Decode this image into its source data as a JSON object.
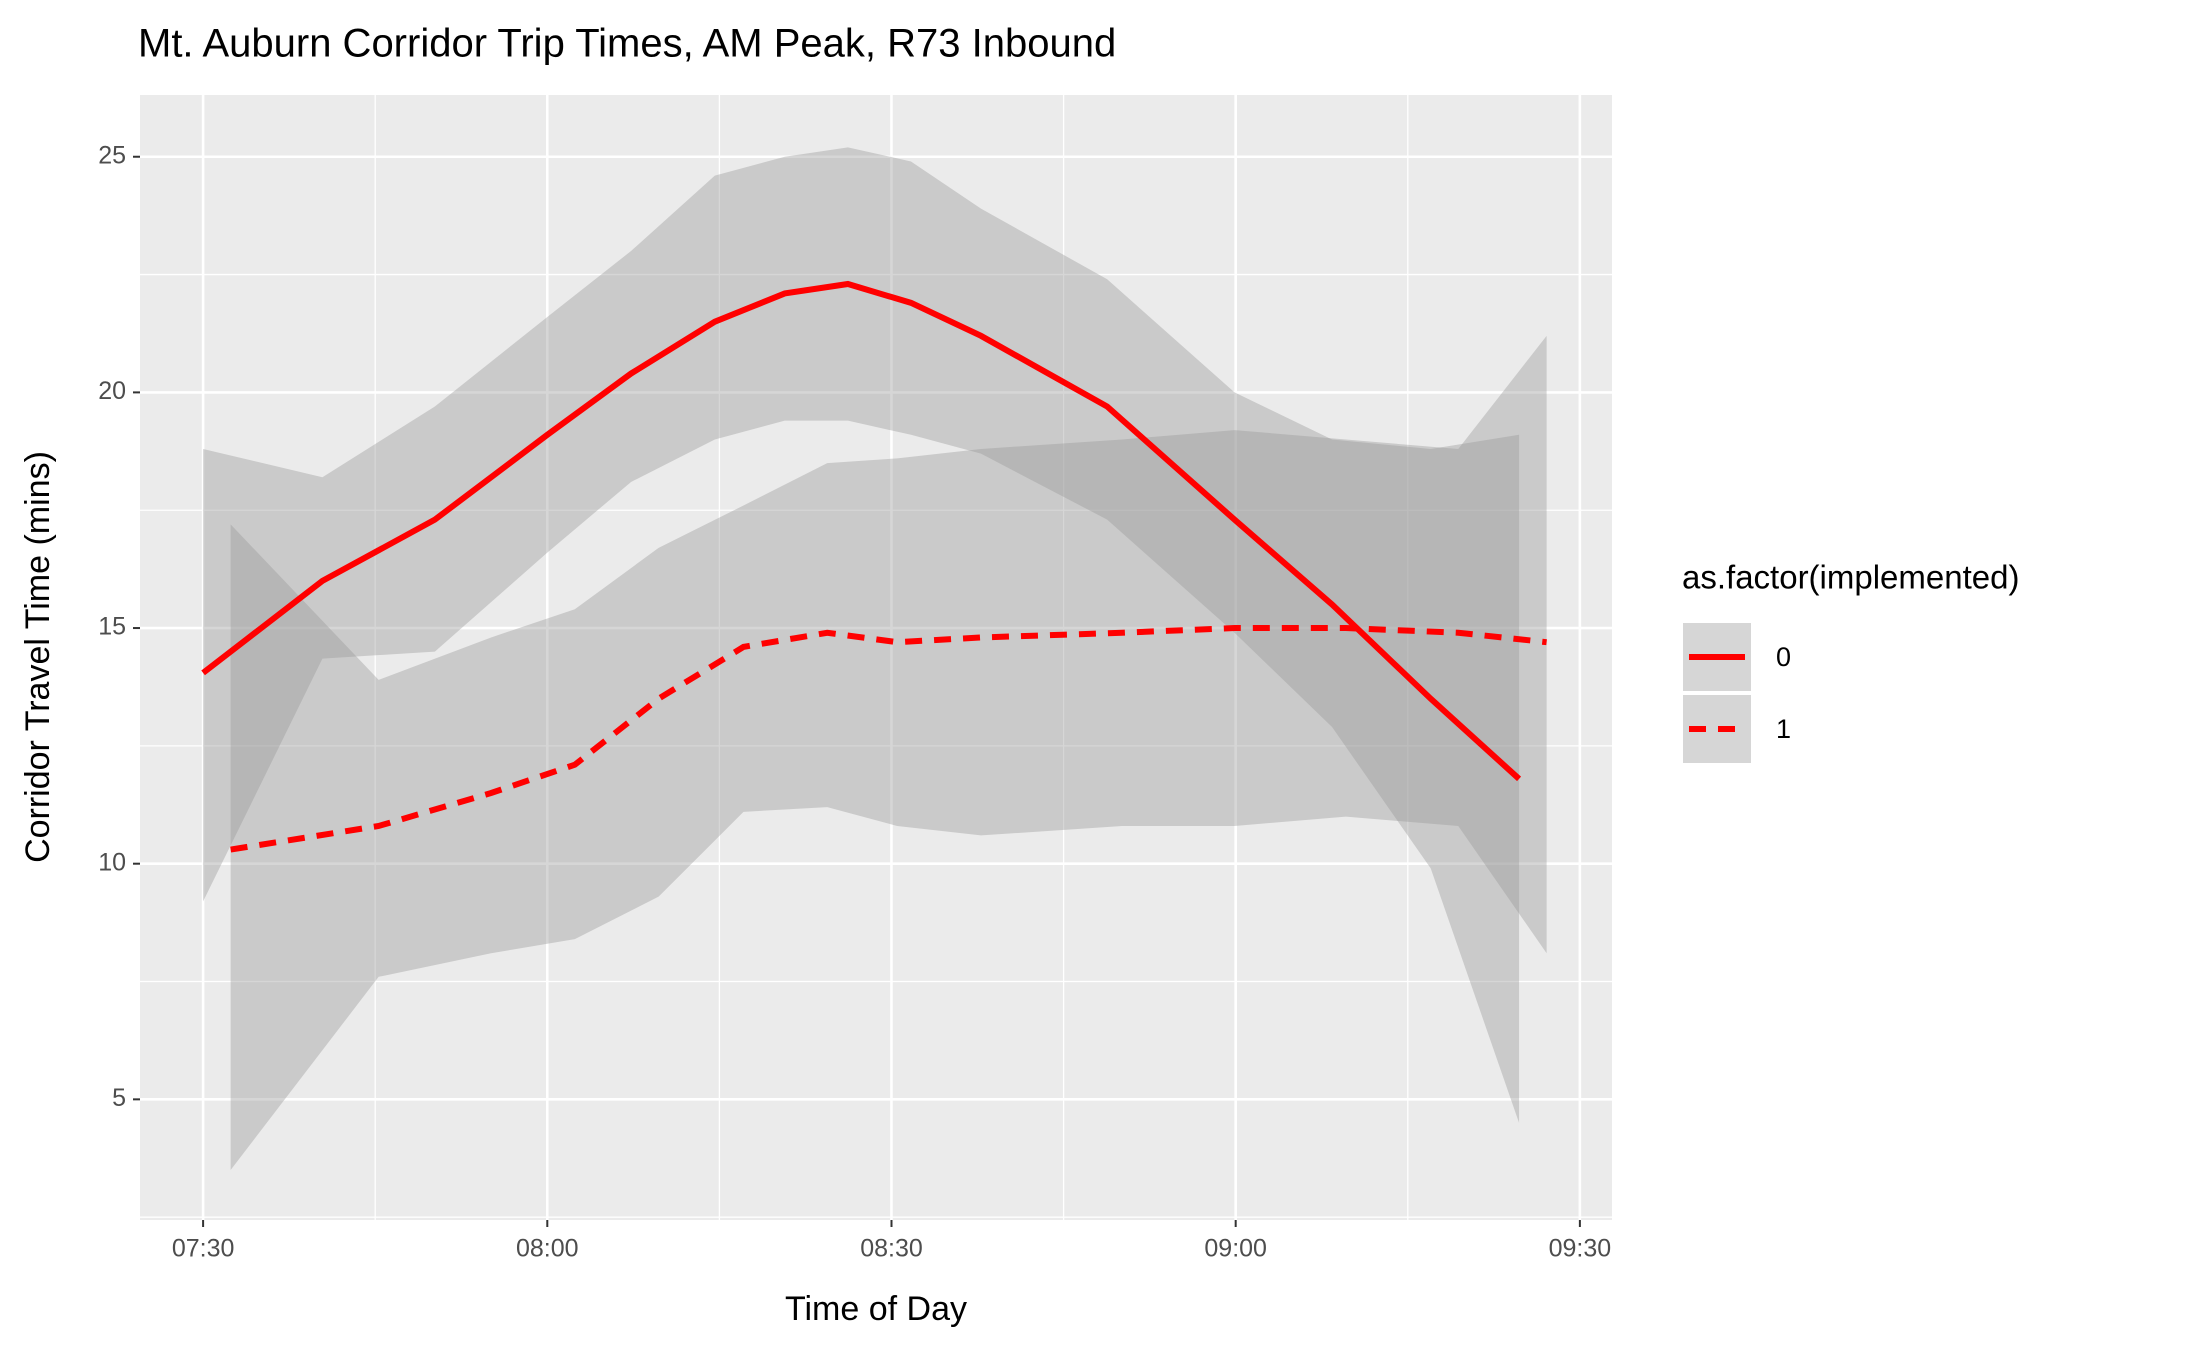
{
  "chart_data": {
    "type": "line",
    "title": "Mt. Auburn Corridor Trip Times, AM Peak, R73 Inbound",
    "x_label": "Time of Day",
    "y_label": "Corridor Travel Time (mins)",
    "legend_title": "as.factor(implemented)",
    "legend_position": "right",
    "grid": true,
    "band_color": "#999999",
    "xlim": [
      444.5,
      572.8
    ],
    "xticks": [
      {
        "value": 450,
        "label": "07:30"
      },
      {
        "value": 480,
        "label": "08:00"
      },
      {
        "value": 510,
        "label": "08:30"
      },
      {
        "value": 540,
        "label": "09:00"
      },
      {
        "value": 570,
        "label": "09:30"
      }
    ],
    "ylim": [
      2.44,
      26.31
    ],
    "yticks": [
      5,
      10,
      15,
      20,
      25
    ],
    "series": [
      {
        "name": "0",
        "color": "#ff0000",
        "dashed": false,
        "x": [
          450,
          460.4,
          470.2,
          480,
          487.3,
          494.6,
          500.7,
          506.2,
          511.7,
          517.8,
          528.8,
          539.9,
          548.4,
          557,
          564.7
        ],
        "values": [
          14.05,
          16.0,
          17.3,
          19.1,
          20.4,
          21.5,
          22.1,
          22.3,
          21.9,
          21.2,
          19.7,
          17.3,
          15.5,
          13.5,
          11.8
        ],
        "lower": [
          9.2,
          14.35,
          14.5,
          16.6,
          18.1,
          19.0,
          19.4,
          19.4,
          19.1,
          18.7,
          17.3,
          14.9,
          12.9,
          9.9,
          4.5
        ],
        "upper": [
          18.8,
          18.2,
          19.7,
          21.6,
          23.0,
          24.6,
          25.0,
          25.2,
          24.9,
          23.9,
          22.4,
          20.0,
          19.0,
          18.8,
          19.1
        ]
      },
      {
        "name": "1",
        "color": "#ff0000",
        "dashed": true,
        "x": [
          452.4,
          465.3,
          475.1,
          482.4,
          489.7,
          497.1,
          504.4,
          510.5,
          517.8,
          530.1,
          539.9,
          549.6,
          559.4,
          567.1
        ],
        "values": [
          10.3,
          10.8,
          11.5,
          12.1,
          13.5,
          14.6,
          14.9,
          14.7,
          14.8,
          14.9,
          15.0,
          15.0,
          14.9,
          14.7
        ],
        "lower": [
          3.5,
          7.6,
          8.1,
          8.4,
          9.3,
          11.1,
          11.2,
          10.8,
          10.6,
          10.8,
          10.8,
          11.0,
          10.8,
          8.1
        ],
        "upper": [
          17.2,
          13.9,
          14.8,
          15.4,
          16.7,
          17.6,
          18.5,
          18.6,
          18.8,
          19.0,
          19.2,
          19.0,
          18.8,
          21.2
        ]
      }
    ]
  }
}
